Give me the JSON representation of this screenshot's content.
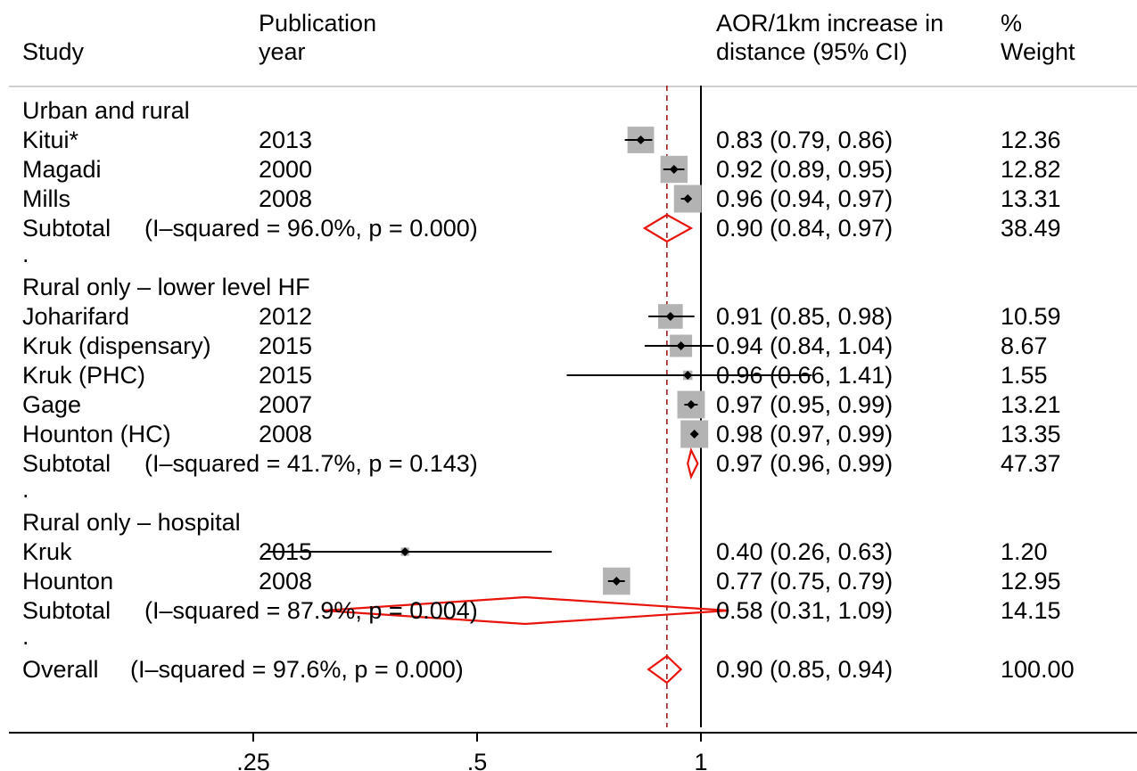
{
  "header": {
    "study": "Study",
    "year_line1": "Publication",
    "year_line2": "year",
    "effect_line1": "AOR/1km increase in",
    "effect_line2": "distance (95% CI)",
    "weight_line1": "%",
    "weight_line2": "Weight"
  },
  "rows": [
    {
      "type": "group",
      "label": "Urban and rural"
    },
    {
      "type": "study",
      "study": "Kitui*",
      "year": "2013",
      "est": 0.83,
      "lo": 0.79,
      "hi": 0.86,
      "ci_text": "0.83 (0.79, 0.86)",
      "weight": "12.36"
    },
    {
      "type": "study",
      "study": "Magadi",
      "year": "2000",
      "est": 0.92,
      "lo": 0.89,
      "hi": 0.95,
      "ci_text": "0.92 (0.89, 0.95)",
      "weight": "12.82"
    },
    {
      "type": "study",
      "study": "Mills",
      "year": "2008",
      "est": 0.96,
      "lo": 0.94,
      "hi": 0.97,
      "ci_text": "0.96 (0.94, 0.97)",
      "weight": "13.31"
    },
    {
      "type": "subtotal",
      "label": "Subtotal",
      "stat": "(I–squared = 96.0%, p = 0.000)",
      "est": 0.9,
      "lo": 0.84,
      "hi": 0.97,
      "ci_text": "0.90 (0.84, 0.97)",
      "weight": "38.49"
    },
    {
      "type": "spacer",
      "label": "."
    },
    {
      "type": "group",
      "label": "Rural only – lower level HF"
    },
    {
      "type": "study",
      "study": "Joharifard",
      "year": "2012",
      "est": 0.91,
      "lo": 0.85,
      "hi": 0.98,
      "ci_text": "0.91 (0.85, 0.98)",
      "weight": "10.59"
    },
    {
      "type": "study",
      "study": "Kruk (dispensary)",
      "year": "2015",
      "est": 0.94,
      "lo": 0.84,
      "hi": 1.04,
      "ci_text": "0.94 (0.84, 1.04)",
      "weight": "8.67"
    },
    {
      "type": "study",
      "study": "Kruk (PHC)",
      "year": "2015",
      "est": 0.96,
      "lo": 0.66,
      "hi": 1.41,
      "ci_text": "0.96 (0.66, 1.41)",
      "weight": "1.55"
    },
    {
      "type": "study",
      "study": "Gage",
      "year": "2007",
      "est": 0.97,
      "lo": 0.95,
      "hi": 0.99,
      "ci_text": "0.97 (0.95, 0.99)",
      "weight": "13.21"
    },
    {
      "type": "study",
      "study": "Hounton (HC)",
      "year": "2008",
      "est": 0.98,
      "lo": 0.97,
      "hi": 0.99,
      "ci_text": "0.98 (0.97, 0.99)",
      "weight": "13.35"
    },
    {
      "type": "subtotal",
      "label": "Subtotal",
      "stat": "(I–squared = 41.7%, p = 0.143)",
      "est": 0.97,
      "lo": 0.96,
      "hi": 0.99,
      "ci_text": "0.97 (0.96, 0.99)",
      "weight": "47.37"
    },
    {
      "type": "spacer",
      "label": "."
    },
    {
      "type": "group",
      "label": "Rural only – hospital"
    },
    {
      "type": "study",
      "study": "Kruk",
      "year": "2015",
      "est": 0.4,
      "lo": 0.26,
      "hi": 0.63,
      "ci_text": "0.40 (0.26, 0.63)",
      "weight": "1.20"
    },
    {
      "type": "study",
      "study": "Hounton",
      "year": "2008",
      "est": 0.77,
      "lo": 0.75,
      "hi": 0.79,
      "ci_text": "0.77 (0.75, 0.79)",
      "weight": "12.95"
    },
    {
      "type": "subtotal",
      "label": "Subtotal",
      "stat": "(I–squared = 87.9%, p = 0.004)",
      "est": 0.58,
      "lo": 0.31,
      "hi": 1.09,
      "ci_text": "0.58 (0.31, 1.09)",
      "weight": "14.15"
    },
    {
      "type": "spacer",
      "label": "."
    },
    {
      "type": "overall",
      "label": "Overall",
      "stat": "(I–squared = 97.6%, p = 0.000)",
      "est": 0.9,
      "lo": 0.85,
      "hi": 0.94,
      "ci_text": "0.90 (0.85, 0.94)",
      "weight": "100.00"
    }
  ],
  "chart_data": {
    "type": "forest",
    "x_scale": "log",
    "x_ticks": [
      0.25,
      0.5,
      1
    ],
    "x_tick_labels": [
      ".25",
      ".5",
      "1"
    ],
    "null_line": 1,
    "overall_line": 0.9,
    "colors": {
      "box": "#b3b3b3",
      "point": "#000000",
      "diamond": "#e8140c",
      "overall_line": "#9b1b1b",
      "axis": "#000000",
      "header_rule": "#cfcfcf"
    }
  }
}
